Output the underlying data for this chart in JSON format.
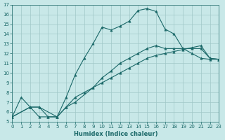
{
  "xlabel": "Humidex (Indice chaleur)",
  "bg_color": "#c8e8e8",
  "grid_color": "#a0c8c8",
  "line_color": "#1a6868",
  "xlim": [
    0,
    23
  ],
  "ylim": [
    5,
    17
  ],
  "xticks": [
    0,
    1,
    2,
    3,
    4,
    5,
    6,
    7,
    8,
    9,
    10,
    11,
    12,
    13,
    14,
    15,
    16,
    17,
    18,
    19,
    20,
    21,
    22,
    23
  ],
  "yticks": [
    5,
    6,
    7,
    8,
    9,
    10,
    11,
    12,
    13,
    14,
    15,
    16,
    17
  ],
  "curve1_x": [
    0,
    1,
    2,
    3,
    4,
    5,
    6,
    7,
    8,
    9,
    10,
    11,
    12,
    13,
    14,
    15,
    16,
    17,
    18,
    19,
    20,
    21,
    22,
    23
  ],
  "curve1_y": [
    5.5,
    7.5,
    6.5,
    5.5,
    5.5,
    5.5,
    7.5,
    9.8,
    11.5,
    13.0,
    14.7,
    14.4,
    14.8,
    15.3,
    16.4,
    16.6,
    16.3,
    14.5,
    14.0,
    12.5,
    12.0,
    11.5,
    11.4,
    11.4
  ],
  "curve2_x": [
    0,
    2,
    3,
    4,
    5,
    6,
    7,
    8,
    9,
    10,
    11,
    12,
    13,
    14,
    15,
    16,
    17,
    18,
    19,
    20,
    21,
    22,
    23
  ],
  "curve2_y": [
    5.5,
    6.5,
    6.5,
    5.5,
    5.5,
    6.5,
    7.5,
    8.0,
    8.5,
    9.0,
    9.5,
    10.0,
    10.5,
    11.0,
    11.5,
    11.8,
    12.0,
    12.2,
    12.4,
    12.6,
    12.8,
    11.5,
    11.4
  ],
  "curve3_x": [
    0,
    2,
    3,
    5,
    6,
    7,
    9,
    10,
    11,
    12,
    13,
    14,
    15,
    16,
    17,
    18,
    19,
    20,
    21,
    22,
    23
  ],
  "curve3_y": [
    5.5,
    6.5,
    6.5,
    5.5,
    6.5,
    7.0,
    8.5,
    9.5,
    10.2,
    11.0,
    11.5,
    12.0,
    12.5,
    12.8,
    12.5,
    12.5,
    12.5,
    12.5,
    12.5,
    11.5,
    11.4
  ]
}
